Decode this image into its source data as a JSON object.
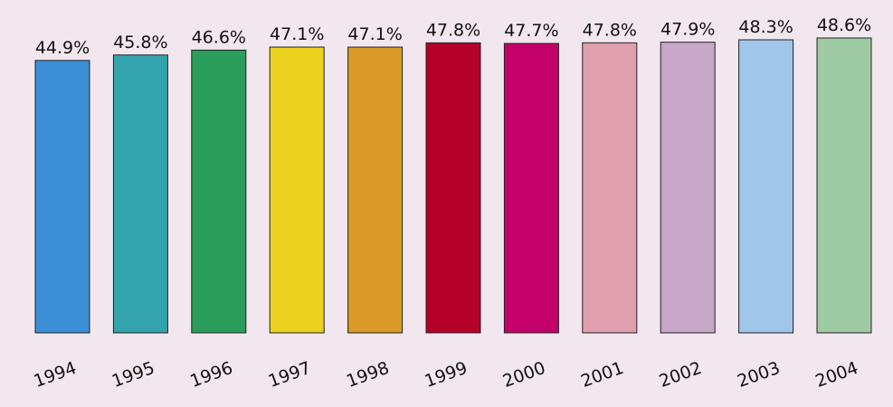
{
  "chart_data": {
    "type": "bar",
    "categories": [
      "1994",
      "1995",
      "1996",
      "1997",
      "1998",
      "1999",
      "2000",
      "2001",
      "2002",
      "2003",
      "2004"
    ],
    "values": [
      44.9,
      45.8,
      46.6,
      47.1,
      47.1,
      47.8,
      47.7,
      47.8,
      47.9,
      48.3,
      48.6
    ],
    "value_labels": [
      "44.9%",
      "45.8%",
      "46.6%",
      "47.1%",
      "47.1%",
      "47.8%",
      "47.7%",
      "47.8%",
      "47.9%",
      "48.3%",
      "48.6%"
    ],
    "colors": [
      "#3a8fd6",
      "#33a3ad",
      "#2a9d5a",
      "#ecd21e",
      "#db9a27",
      "#b5002a",
      "#c4006a",
      "#e09fae",
      "#c6a7c8",
      "#a0c6ea",
      "#9ecaa4"
    ]
  }
}
